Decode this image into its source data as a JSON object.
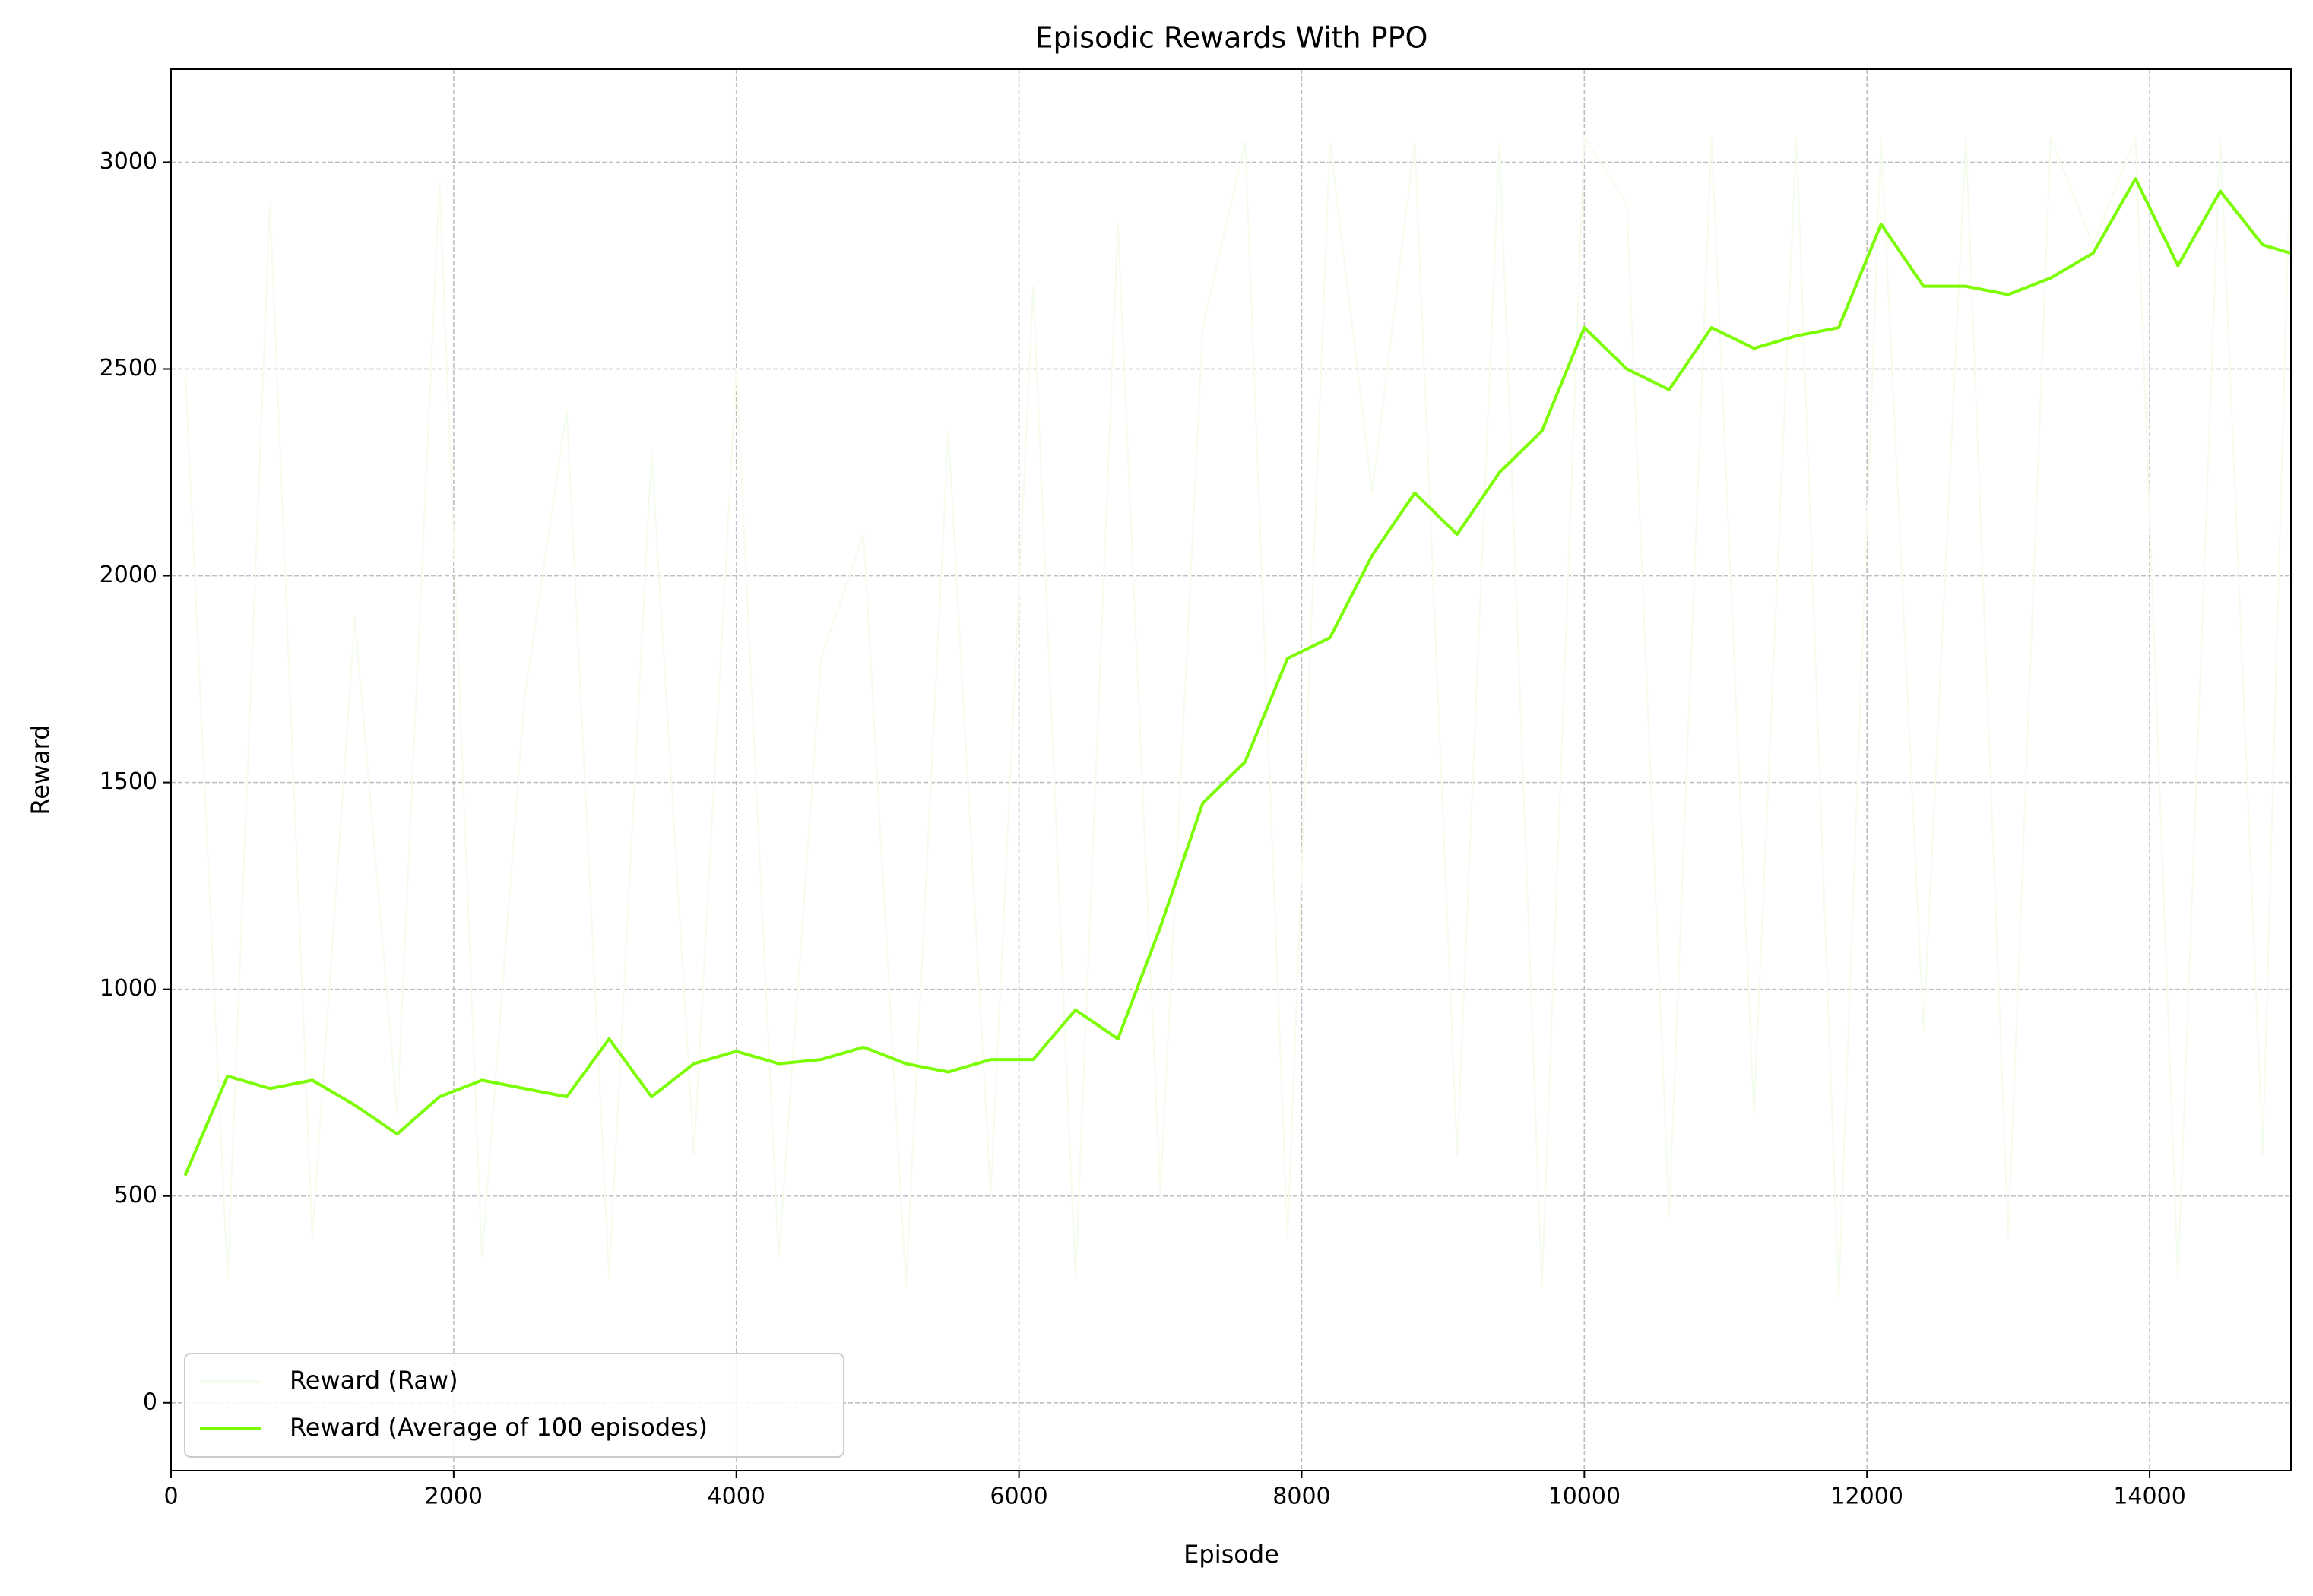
{
  "chart_data": {
    "type": "line",
    "title": "Episodic Rewards With PPO",
    "x_label": "Episode",
    "y_label": "Reward",
    "x": [
      100,
      400,
      700,
      1000,
      1300,
      1600,
      1900,
      2200,
      2500,
      2800,
      3100,
      3400,
      3700,
      4000,
      4300,
      4600,
      4900,
      5200,
      5500,
      5800,
      6100,
      6400,
      6700,
      7000,
      7300,
      7600,
      7900,
      8200,
      8500,
      8800,
      9100,
      9400,
      9700,
      10000,
      10300,
      10600,
      10900,
      11200,
      11500,
      11800,
      12100,
      12400,
      12700,
      13000,
      13300,
      13600,
      13900,
      14200,
      14500,
      14800,
      15000
    ],
    "series": [
      {
        "name": "Reward (Raw)",
        "color": "#f4fcec",
        "values": [
          2500,
          300,
          2900,
          400,
          1900,
          700,
          2950,
          350,
          1700,
          2400,
          300,
          2300,
          600,
          2500,
          350,
          1800,
          2100,
          280,
          2350,
          500,
          2700,
          300,
          2850,
          500,
          2600,
          3050,
          400,
          3050,
          2200,
          3050,
          600,
          3050,
          280,
          3060,
          2900,
          450,
          3060,
          700,
          3060,
          260,
          3060,
          900,
          3060,
          400,
          3060,
          2800,
          3060,
          300,
          3060,
          600,
          3060
        ]
      },
      {
        "name": "Reward (Average of 100 episodes)",
        "color": "#7cfc00",
        "values": [
          550,
          790,
          760,
          780,
          720,
          650,
          740,
          780,
          760,
          740,
          880,
          740,
          820,
          850,
          820,
          830,
          860,
          820,
          800,
          830,
          830,
          950,
          880,
          1150,
          1450,
          1550,
          1800,
          1850,
          2050,
          2200,
          2100,
          2250,
          2350,
          2600,
          2500,
          2450,
          2600,
          2550,
          2580,
          2600,
          2850,
          2700,
          2700,
          2680,
          2720,
          2780,
          2960,
          2750,
          2930,
          2800,
          2780
        ]
      }
    ],
    "xlim": [
      0,
      15000
    ],
    "ylim": [
      -164,
      3225
    ],
    "xticks": [
      0,
      2000,
      4000,
      6000,
      8000,
      10000,
      12000,
      14000
    ],
    "yticks": [
      0,
      500,
      1000,
      1500,
      2000,
      2500,
      3000
    ],
    "grid": true,
    "legend": "lower left"
  }
}
